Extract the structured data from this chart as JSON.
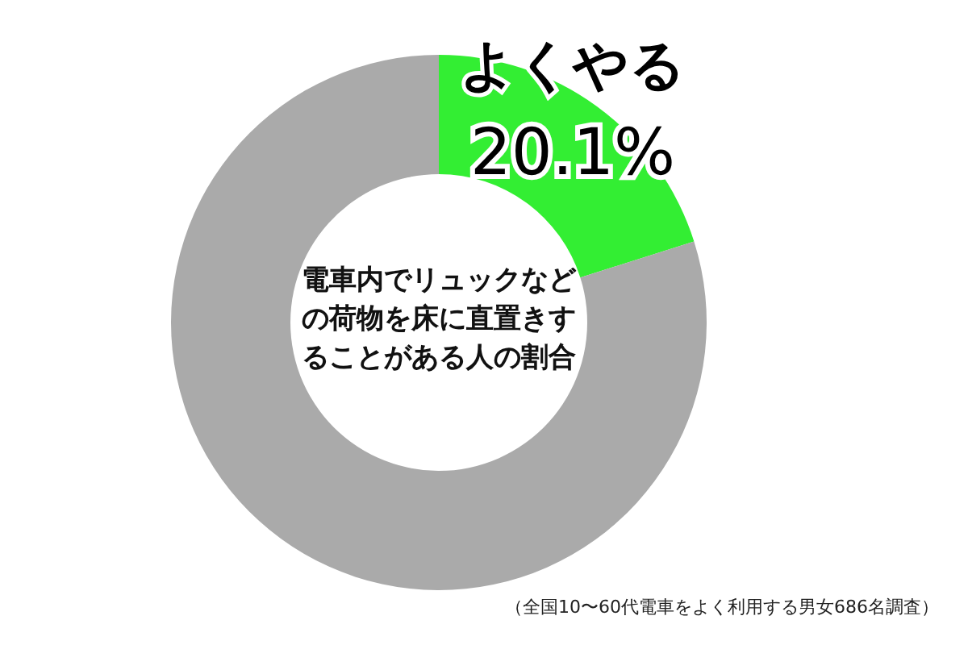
{
  "chart_data": {
    "type": "donut",
    "title": "電車内でリュックなどの荷物を床に直置きすることがある人の割合",
    "categories": [
      "よくやる",
      null
    ],
    "values": [
      20.1,
      79.9
    ],
    "value_labels": [
      "20.1%",
      null
    ],
    "colors": [
      "#33ee33",
      "#aaaaaa"
    ],
    "annotations": [
      "（全国10〜60代電車をよく利用する男女686名調査）"
    ]
  }
}
